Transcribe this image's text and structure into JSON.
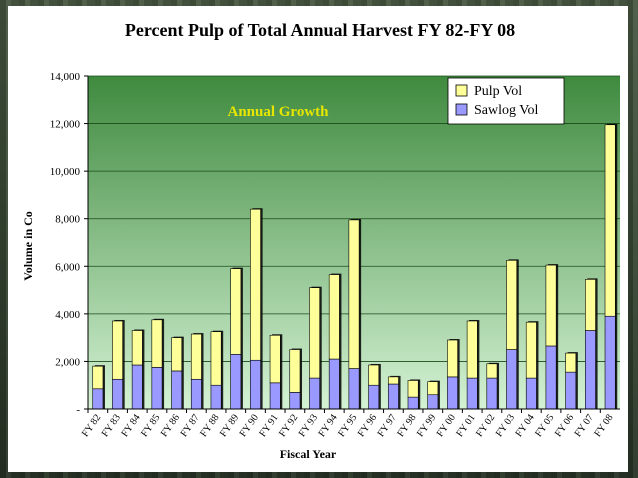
{
  "chart_data": {
    "type": "stacked-bar",
    "title": "Percent Pulp of Total Annual Harvest FY 82-FY 08",
    "xlabel": "Fiscal Year",
    "ylabel": "Volume in Co",
    "ylim": [
      0,
      14000
    ],
    "yticks": [
      "-",
      "2,000",
      "4,000",
      "6,000",
      "8,000",
      "10,000",
      "12,000",
      "14,000"
    ],
    "ytick_values": [
      0,
      2000,
      4000,
      6000,
      8000,
      10000,
      12000,
      14000
    ],
    "grid": true,
    "legend_position": "top-right",
    "annotation": "Annual Growth",
    "colors": {
      "pulp": "#ffff99",
      "sawlog": "#9999ff",
      "plot_top": "#3f8a3f",
      "plot_bottom": "#d4f2d4"
    },
    "categories": [
      "FY 82",
      "FY 83",
      "FY 84",
      "FY 85",
      "FY 86",
      "FY 87",
      "FY 88",
      "FY 89",
      "FY 90",
      "FY 91",
      "FY 92",
      "FY 93",
      "FY 94",
      "FY 95",
      "FY 96",
      "FY 97",
      "FY 98",
      "FY 99",
      "FY 00",
      "FY 01",
      "FY 02",
      "FY 03",
      "FY 04",
      "FY 05",
      "FY 06",
      "FY 07",
      "FY 08"
    ],
    "series": [
      {
        "name": "Sawlog Vol",
        "values": [
          850,
          1250,
          1850,
          1750,
          1600,
          1250,
          1000,
          2300,
          2050,
          1100,
          700,
          1300,
          2100,
          1700,
          1000,
          1050,
          500,
          600,
          1350,
          1300,
          1300,
          2500,
          1300,
          2650,
          1550,
          3300,
          3900
        ]
      },
      {
        "name": "Pulp Vol",
        "values": [
          950,
          2450,
          1450,
          2000,
          1400,
          1900,
          2250,
          3600,
          6350,
          2000,
          1800,
          3800,
          3550,
          6250,
          850,
          300,
          700,
          550,
          1550,
          2400,
          600,
          3750,
          2350,
          3400,
          800,
          2150,
          8050
        ]
      }
    ],
    "legend": [
      "Pulp Vol",
      "Sawlog Vol"
    ]
  }
}
